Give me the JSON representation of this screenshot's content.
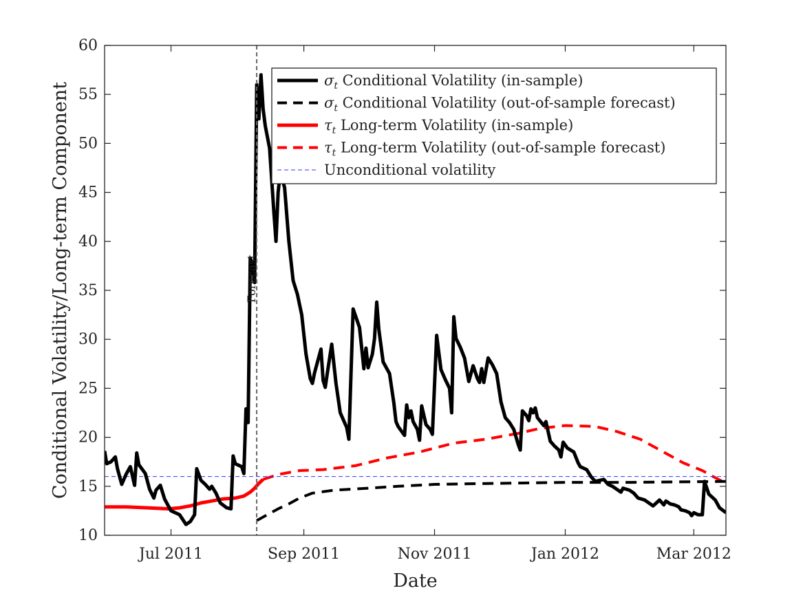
{
  "chart_data": {
    "type": "line",
    "xlabel": "Date",
    "ylabel": "Conditional Volatility/Long-term Component",
    "ylim": [
      10,
      60
    ],
    "xlim": [
      "2011-05-31",
      "2012-03-16"
    ],
    "yticks": [
      10,
      15,
      20,
      25,
      30,
      35,
      40,
      45,
      50,
      55,
      60
    ],
    "xticks": [
      {
        "date": "2011-07-01",
        "label": "Jul 2011"
      },
      {
        "date": "2011-09-01",
        "label": "Sep 2011"
      },
      {
        "date": "2011-11-01",
        "label": "Nov 2011"
      },
      {
        "date": "2012-01-01",
        "label": "Jan 2012"
      },
      {
        "date": "2012-03-01",
        "label": "Mar 2012"
      }
    ],
    "grid": false,
    "legend_position": "top-right",
    "annotation": {
      "label": "Forecast",
      "date": "2011-08-10"
    },
    "legend": [
      {
        "symbol": "σ",
        "sub": "t",
        "text": "Conditional Volatility (in-sample)",
        "color": "#000000",
        "style": "solid"
      },
      {
        "symbol": "σ",
        "sub": "t",
        "text": "Conditional Volatility (out-of-sample forecast)",
        "color": "#000000",
        "style": "dashed"
      },
      {
        "symbol": "τ",
        "sub": "t",
        "text": "Long-term Volatility (in-sample)",
        "color": "#ff0000",
        "style": "solid"
      },
      {
        "symbol": "τ",
        "sub": "t",
        "text": "Long-term Volatility (out-of-sample forecast)",
        "color": "#ff0000",
        "style": "dashed"
      },
      {
        "symbol": "",
        "sub": "",
        "text": "Unconditional volatility",
        "color": "#3333ff",
        "style": "thin-dashed"
      }
    ],
    "series": [
      {
        "name": "σt Conditional Volatility (in-sample)",
        "color": "#000000",
        "style": "solid",
        "points": [
          [
            "2011-05-31",
            18.6
          ],
          [
            "2011-06-01",
            17.3
          ],
          [
            "2011-06-03",
            17.5
          ],
          [
            "2011-06-05",
            18.0
          ],
          [
            "2011-06-06",
            16.8
          ],
          [
            "2011-06-08",
            15.2
          ],
          [
            "2011-06-10",
            16.2
          ],
          [
            "2011-06-12",
            17.0
          ],
          [
            "2011-06-14",
            15.1
          ],
          [
            "2011-06-15",
            18.4
          ],
          [
            "2011-06-16",
            17.2
          ],
          [
            "2011-06-19",
            16.3
          ],
          [
            "2011-06-21",
            14.7
          ],
          [
            "2011-06-23",
            13.8
          ],
          [
            "2011-06-24",
            14.6
          ],
          [
            "2011-06-26",
            15.1
          ],
          [
            "2011-06-28",
            13.7
          ],
          [
            "2011-07-01",
            12.5
          ],
          [
            "2011-07-05",
            12.1
          ],
          [
            "2011-07-08",
            11.1
          ],
          [
            "2011-07-10",
            11.4
          ],
          [
            "2011-07-12",
            12.1
          ],
          [
            "2011-07-13",
            16.8
          ],
          [
            "2011-07-15",
            15.6
          ],
          [
            "2011-07-17",
            15.2
          ],
          [
            "2011-07-19",
            14.7
          ],
          [
            "2011-07-20",
            15.0
          ],
          [
            "2011-07-22",
            14.3
          ],
          [
            "2011-07-24",
            13.3
          ],
          [
            "2011-07-27",
            12.8
          ],
          [
            "2011-07-29",
            12.7
          ],
          [
            "2011-07-30",
            18.1
          ],
          [
            "2011-07-31",
            17.3
          ],
          [
            "2011-08-03",
            17.0
          ],
          [
            "2011-08-04",
            16.3
          ],
          [
            "2011-08-05",
            22.9
          ],
          [
            "2011-08-06",
            21.5
          ],
          [
            "2011-08-07",
            38.3
          ],
          [
            "2011-08-08",
            37.6
          ],
          [
            "2011-08-09",
            35.8
          ],
          [
            "2011-08-10",
            56.0
          ],
          [
            "2011-08-11",
            52.5
          ],
          [
            "2011-08-12",
            57.0
          ],
          [
            "2011-08-13",
            53.5
          ],
          [
            "2011-08-14",
            51.8
          ],
          [
            "2011-08-16",
            49.5
          ],
          [
            "2011-08-18",
            43.0
          ],
          [
            "2011-08-19",
            40.0
          ],
          [
            "2011-08-20",
            45.0
          ],
          [
            "2011-08-21",
            47.0
          ],
          [
            "2011-08-23",
            45.5
          ],
          [
            "2011-08-25",
            40.0
          ],
          [
            "2011-08-27",
            36.0
          ],
          [
            "2011-08-29",
            34.6
          ],
          [
            "2011-08-31",
            32.5
          ],
          [
            "2011-09-02",
            28.5
          ],
          [
            "2011-09-04",
            26.0
          ],
          [
            "2011-09-05",
            25.5
          ],
          [
            "2011-09-06",
            26.6
          ],
          [
            "2011-09-09",
            29.0
          ],
          [
            "2011-09-10",
            25.8
          ],
          [
            "2011-09-11",
            25.1
          ],
          [
            "2011-09-12",
            26.6
          ],
          [
            "2011-09-14",
            29.5
          ],
          [
            "2011-09-16",
            25.5
          ],
          [
            "2011-09-18",
            22.5
          ],
          [
            "2011-09-21",
            21.0
          ],
          [
            "2011-09-22",
            19.8
          ],
          [
            "2011-09-24",
            33.1
          ],
          [
            "2011-09-27",
            31.2
          ],
          [
            "2011-09-29",
            27.0
          ],
          [
            "2011-09-30",
            29.1
          ],
          [
            "2011-10-01",
            27.1
          ],
          [
            "2011-10-03",
            28.5
          ],
          [
            "2011-10-04",
            30.1
          ],
          [
            "2011-10-05",
            33.8
          ],
          [
            "2011-10-06",
            31.0
          ],
          [
            "2011-10-08",
            27.7
          ],
          [
            "2011-10-11",
            26.5
          ],
          [
            "2011-10-13",
            23.5
          ],
          [
            "2011-10-14",
            21.6
          ],
          [
            "2011-10-15",
            21.1
          ],
          [
            "2011-10-18",
            20.2
          ],
          [
            "2011-10-19",
            23.3
          ],
          [
            "2011-10-20",
            22.0
          ],
          [
            "2011-10-21",
            22.7
          ],
          [
            "2011-10-22",
            21.6
          ],
          [
            "2011-10-24",
            20.8
          ],
          [
            "2011-10-25",
            19.7
          ],
          [
            "2011-10-26",
            23.2
          ],
          [
            "2011-10-28",
            21.3
          ],
          [
            "2011-10-30",
            20.8
          ],
          [
            "2011-10-31",
            20.3
          ],
          [
            "2011-11-02",
            30.4
          ],
          [
            "2011-11-04",
            26.9
          ],
          [
            "2011-11-06",
            25.9
          ],
          [
            "2011-11-08",
            25.0
          ],
          [
            "2011-11-09",
            22.5
          ],
          [
            "2011-11-10",
            32.3
          ],
          [
            "2011-11-11",
            30.1
          ],
          [
            "2011-11-13",
            29.2
          ],
          [
            "2011-11-15",
            28.1
          ],
          [
            "2011-11-17",
            25.7
          ],
          [
            "2011-11-19",
            27.3
          ],
          [
            "2011-11-21",
            26.0
          ],
          [
            "2011-11-22",
            25.6
          ],
          [
            "2011-11-23",
            27.0
          ],
          [
            "2011-11-24",
            25.6
          ],
          [
            "2011-11-26",
            28.1
          ],
          [
            "2011-11-28",
            27.4
          ],
          [
            "2011-11-30",
            26.5
          ],
          [
            "2011-12-02",
            23.6
          ],
          [
            "2011-12-04",
            22.0
          ],
          [
            "2011-12-06",
            21.5
          ],
          [
            "2011-12-08",
            20.8
          ],
          [
            "2011-12-10",
            19.3
          ],
          [
            "2011-12-11",
            18.7
          ],
          [
            "2011-12-12",
            22.7
          ],
          [
            "2011-12-14",
            22.2
          ],
          [
            "2011-12-15",
            21.7
          ],
          [
            "2011-12-16",
            22.9
          ],
          [
            "2011-12-17",
            22.5
          ],
          [
            "2011-12-18",
            23.0
          ],
          [
            "2011-12-19",
            22.0
          ],
          [
            "2011-12-22",
            21.2
          ],
          [
            "2011-12-23",
            21.6
          ],
          [
            "2011-12-25",
            19.6
          ],
          [
            "2011-12-27",
            19.1
          ],
          [
            "2011-12-29",
            18.7
          ],
          [
            "2011-12-30",
            18.0
          ],
          [
            "2011-12-31",
            19.5
          ],
          [
            "2012-01-02",
            18.9
          ],
          [
            "2012-01-05",
            18.5
          ],
          [
            "2012-01-07",
            17.4
          ],
          [
            "2012-01-08",
            17.0
          ],
          [
            "2012-01-11",
            16.7
          ],
          [
            "2012-01-13",
            16.0
          ],
          [
            "2012-01-15",
            15.5
          ],
          [
            "2012-01-17",
            15.6
          ],
          [
            "2012-01-19",
            15.7
          ],
          [
            "2012-01-21",
            15.2
          ],
          [
            "2012-01-23",
            15.0
          ],
          [
            "2012-01-25",
            14.7
          ],
          [
            "2012-01-27",
            14.4
          ],
          [
            "2012-01-28",
            14.8
          ],
          [
            "2012-01-31",
            14.6
          ],
          [
            "2012-02-02",
            14.3
          ],
          [
            "2012-02-04",
            13.8
          ],
          [
            "2012-02-07",
            13.6
          ],
          [
            "2012-02-09",
            13.3
          ],
          [
            "2012-02-11",
            13.0
          ],
          [
            "2012-02-13",
            13.4
          ],
          [
            "2012-02-14",
            13.6
          ],
          [
            "2012-02-16",
            13.1
          ],
          [
            "2012-02-17",
            13.5
          ],
          [
            "2012-02-19",
            13.2
          ],
          [
            "2012-02-21",
            13.1
          ],
          [
            "2012-02-23",
            12.9
          ],
          [
            "2012-02-24",
            12.6
          ],
          [
            "2012-02-26",
            12.5
          ],
          [
            "2012-02-28",
            12.3
          ],
          [
            "2012-02-29",
            12.0
          ],
          [
            "2012-03-01",
            12.3
          ],
          [
            "2012-03-03",
            12.1
          ],
          [
            "2012-03-05",
            12.1
          ],
          [
            "2012-03-06",
            15.5
          ],
          [
            "2012-03-08",
            14.2
          ],
          [
            "2012-03-11",
            13.6
          ],
          [
            "2012-03-13",
            12.8
          ],
          [
            "2012-03-16",
            12.3
          ]
        ]
      },
      {
        "name": "σt Conditional Volatility (out-of-sample forecast)",
        "color": "#000000",
        "style": "dashed",
        "points": [
          [
            "2011-08-10",
            11.5
          ],
          [
            "2011-08-15",
            12.1
          ],
          [
            "2011-08-20",
            12.7
          ],
          [
            "2011-08-25",
            13.2
          ],
          [
            "2011-08-30",
            13.8
          ],
          [
            "2011-09-05",
            14.3
          ],
          [
            "2011-09-15",
            14.6
          ],
          [
            "2011-10-01",
            14.8
          ],
          [
            "2011-10-15",
            15.0
          ],
          [
            "2011-11-01",
            15.2
          ],
          [
            "2011-12-01",
            15.3
          ],
          [
            "2012-01-01",
            15.4
          ],
          [
            "2012-02-01",
            15.4
          ],
          [
            "2012-03-16",
            15.5
          ]
        ]
      },
      {
        "name": "τt Long-term Volatility (in-sample)",
        "color": "#ff0000",
        "style": "solid",
        "points": [
          [
            "2011-05-31",
            12.9
          ],
          [
            "2011-06-10",
            12.9
          ],
          [
            "2011-06-20",
            12.8
          ],
          [
            "2011-06-30",
            12.7
          ],
          [
            "2011-07-05",
            12.8
          ],
          [
            "2011-07-10",
            13.0
          ],
          [
            "2011-07-15",
            13.3
          ],
          [
            "2011-07-20",
            13.5
          ],
          [
            "2011-07-25",
            13.7
          ],
          [
            "2011-07-31",
            13.8
          ],
          [
            "2011-08-04",
            14.0
          ],
          [
            "2011-08-07",
            14.4
          ],
          [
            "2011-08-09",
            14.8
          ],
          [
            "2011-08-11",
            15.3
          ],
          [
            "2011-08-13",
            15.7
          ]
        ]
      },
      {
        "name": "τt Long-term Volatility (out-of-sample forecast)",
        "color": "#ff0000",
        "style": "dashed",
        "points": [
          [
            "2011-08-13",
            15.7
          ],
          [
            "2011-08-20",
            16.2
          ],
          [
            "2011-08-30",
            16.6
          ],
          [
            "2011-09-10",
            16.7
          ],
          [
            "2011-09-25",
            17.1
          ],
          [
            "2011-10-10",
            17.9
          ],
          [
            "2011-10-25",
            18.5
          ],
          [
            "2011-11-10",
            19.4
          ],
          [
            "2011-11-25",
            19.8
          ],
          [
            "2011-12-10",
            20.4
          ],
          [
            "2011-12-20",
            20.9
          ],
          [
            "2012-01-01",
            21.2
          ],
          [
            "2012-01-15",
            21.1
          ],
          [
            "2012-01-25",
            20.6
          ],
          [
            "2012-02-05",
            19.8
          ],
          [
            "2012-02-15",
            18.6
          ],
          [
            "2012-02-25",
            17.4
          ],
          [
            "2012-03-05",
            16.6
          ],
          [
            "2012-03-10",
            16.0
          ],
          [
            "2012-03-16",
            15.3
          ]
        ]
      },
      {
        "name": "Unconditional volatility",
        "color": "#3333ff",
        "style": "thin-dashed",
        "points": [
          [
            "2011-05-31",
            16.0
          ],
          [
            "2012-03-16",
            16.0
          ]
        ]
      }
    ]
  }
}
